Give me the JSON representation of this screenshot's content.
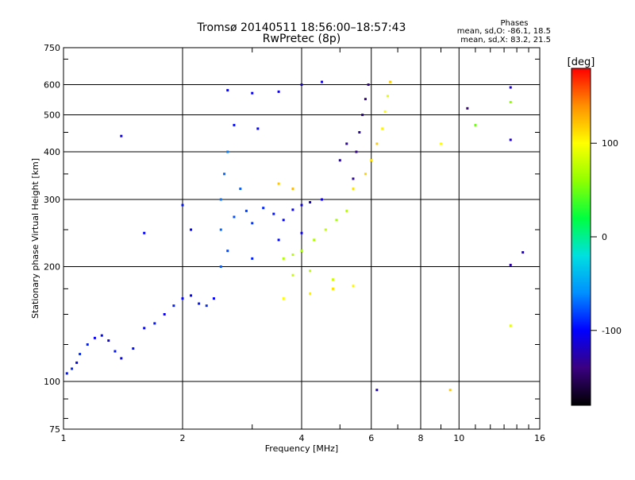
{
  "chart_data": {
    "type": "scatter",
    "title": "Tromsø 20140511 18:56:00–18:57:43",
    "subtitle": "RwPretec (8p)",
    "xlabel": "Frequency [MHz]",
    "ylabel": "Stationary phase Virtual Height [km]",
    "x_scale": "log",
    "y_scale": "log",
    "xlim": [
      1,
      16
    ],
    "ylim": [
      75,
      750
    ],
    "x_ticks": [
      1,
      2,
      4,
      6,
      8,
      10,
      16
    ],
    "x_tick_labels": [
      "1",
      "2",
      "4",
      "6",
      "8",
      "10",
      "16"
    ],
    "y_ticks": [
      75,
      100,
      200,
      300,
      400,
      500,
      600,
      750
    ],
    "y_tick_labels": [
      "75",
      "100",
      "200",
      "300",
      "400",
      "500",
      "600",
      "750"
    ],
    "grid": true,
    "stats": {
      "heading": "Phases",
      "o_line": "mean, sd,O: -86.1, 18.5",
      "x_line": "mean, sd,X: 83.2, 21.5"
    },
    "colorbar": {
      "unit_label": "[deg]",
      "range": [
        -180,
        180
      ],
      "ticks": [
        100,
        0,
        -100
      ],
      "tick_labels": [
        "100",
        "0",
        "-100"
      ],
      "colors": [
        "#000000",
        "#3a0080",
        "#0000ff",
        "#0090ff",
        "#00e0e0",
        "#00ff40",
        "#90ff00",
        "#ffff00",
        "#ff9000",
        "#ff0000"
      ]
    },
    "series": [
      {
        "values": [
          {
            "x": 1.02,
            "y": 105,
            "phase": -95
          },
          {
            "x": 1.05,
            "y": 108,
            "phase": -90
          },
          {
            "x": 1.08,
            "y": 112,
            "phase": -100
          },
          {
            "x": 1.1,
            "y": 118,
            "phase": -88
          },
          {
            "x": 1.15,
            "y": 125,
            "phase": -92
          },
          {
            "x": 1.2,
            "y": 130,
            "phase": -105
          },
          {
            "x": 1.25,
            "y": 132,
            "phase": -98
          },
          {
            "x": 1.3,
            "y": 128,
            "phase": -110
          },
          {
            "x": 1.35,
            "y": 120,
            "phase": -95
          },
          {
            "x": 1.4,
            "y": 115,
            "phase": -102
          },
          {
            "x": 1.5,
            "y": 122,
            "phase": -97
          },
          {
            "x": 1.6,
            "y": 138,
            "phase": -100
          },
          {
            "x": 1.7,
            "y": 142,
            "phase": -95
          },
          {
            "x": 1.8,
            "y": 150,
            "phase": -108
          },
          {
            "x": 1.9,
            "y": 158,
            "phase": -92
          },
          {
            "x": 2.0,
            "y": 165,
            "phase": -99
          },
          {
            "x": 2.1,
            "y": 168,
            "phase": -103
          },
          {
            "x": 2.2,
            "y": 160,
            "phase": -95
          },
          {
            "x": 2.3,
            "y": 158,
            "phase": -88
          },
          {
            "x": 2.4,
            "y": 165,
            "phase": -101
          }
        ]
      },
      {
        "values": [
          {
            "x": 2.5,
            "y": 200,
            "phase": -75
          },
          {
            "x": 2.5,
            "y": 250,
            "phase": -70
          },
          {
            "x": 2.5,
            "y": 300,
            "phase": -68
          },
          {
            "x": 2.55,
            "y": 350,
            "phase": -72
          },
          {
            "x": 2.6,
            "y": 400,
            "phase": -65
          },
          {
            "x": 2.6,
            "y": 220,
            "phase": -80
          },
          {
            "x": 2.7,
            "y": 270,
            "phase": -78
          },
          {
            "x": 2.8,
            "y": 320,
            "phase": -74
          },
          {
            "x": 2.9,
            "y": 280,
            "phase": -82
          },
          {
            "x": 3.0,
            "y": 260,
            "phase": -85
          },
          {
            "x": 3.2,
            "y": 285,
            "phase": -90
          },
          {
            "x": 3.4,
            "y": 275,
            "phase": -95
          },
          {
            "x": 3.6,
            "y": 265,
            "phase": -100
          },
          {
            "x": 3.8,
            "y": 282,
            "phase": -105
          },
          {
            "x": 4.0,
            "y": 290,
            "phase": -110
          },
          {
            "x": 4.2,
            "y": 295,
            "phase": -115
          },
          {
            "x": 4.5,
            "y": 300,
            "phase": -112
          },
          {
            "x": 3.5,
            "y": 235,
            "phase": -98
          },
          {
            "x": 4.0,
            "y": 245,
            "phase": -108
          },
          {
            "x": 3.0,
            "y": 210,
            "phase": -92
          }
        ]
      },
      {
        "values": [
          {
            "x": 2.6,
            "y": 580,
            "phase": -100
          },
          {
            "x": 3.0,
            "y": 570,
            "phase": -105
          },
          {
            "x": 3.5,
            "y": 575,
            "phase": -110
          },
          {
            "x": 4.0,
            "y": 600,
            "phase": -115
          },
          {
            "x": 4.5,
            "y": 610,
            "phase": -112
          },
          {
            "x": 2.7,
            "y": 470,
            "phase": -98
          },
          {
            "x": 3.1,
            "y": 460,
            "phase": -102
          }
        ]
      },
      {
        "values": [
          {
            "x": 5.4,
            "y": 340,
            "phase": -130
          },
          {
            "x": 5.5,
            "y": 400,
            "phase": -135
          },
          {
            "x": 5.6,
            "y": 450,
            "phase": -128
          },
          {
            "x": 5.7,
            "y": 500,
            "phase": -132
          },
          {
            "x": 5.8,
            "y": 550,
            "phase": -138
          },
          {
            "x": 5.9,
            "y": 600,
            "phase": -134
          },
          {
            "x": 5.0,
            "y": 380,
            "phase": -126
          },
          {
            "x": 5.2,
            "y": 420,
            "phase": -129
          }
        ]
      },
      {
        "values": [
          {
            "x": 3.6,
            "y": 210,
            "phase": 72
          },
          {
            "x": 3.8,
            "y": 215,
            "phase": 75
          },
          {
            "x": 4.0,
            "y": 220,
            "phase": 68
          },
          {
            "x": 4.3,
            "y": 235,
            "phase": 70
          },
          {
            "x": 4.6,
            "y": 250,
            "phase": 78
          },
          {
            "x": 4.9,
            "y": 265,
            "phase": 66
          },
          {
            "x": 5.2,
            "y": 280,
            "phase": 74
          },
          {
            "x": 3.8,
            "y": 190,
            "phase": 80
          },
          {
            "x": 4.2,
            "y": 195,
            "phase": 77
          },
          {
            "x": 4.8,
            "y": 185,
            "phase": 82
          }
        ]
      },
      {
        "values": [
          {
            "x": 3.6,
            "y": 165,
            "phase": 100
          },
          {
            "x": 4.2,
            "y": 170,
            "phase": 105
          },
          {
            "x": 4.8,
            "y": 175,
            "phase": 110
          },
          {
            "x": 5.4,
            "y": 178,
            "phase": 102
          },
          {
            "x": 3.5,
            "y": 330,
            "phase": 120
          },
          {
            "x": 3.8,
            "y": 320,
            "phase": 125
          }
        ]
      },
      {
        "values": [
          {
            "x": 5.4,
            "y": 320,
            "phase": 110
          },
          {
            "x": 5.8,
            "y": 350,
            "phase": 115
          },
          {
            "x": 6.0,
            "y": 380,
            "phase": 112
          },
          {
            "x": 6.2,
            "y": 420,
            "phase": 118
          },
          {
            "x": 6.4,
            "y": 460,
            "phase": 105
          },
          {
            "x": 6.5,
            "y": 510,
            "phase": 100
          },
          {
            "x": 6.6,
            "y": 560,
            "phase": 90
          },
          {
            "x": 6.7,
            "y": 610,
            "phase": 120
          }
        ]
      },
      {
        "values": [
          {
            "x": 1.4,
            "y": 440,
            "phase": -110
          },
          {
            "x": 1.6,
            "y": 245,
            "phase": -100
          },
          {
            "x": 2.0,
            "y": 290,
            "phase": -95
          },
          {
            "x": 2.1,
            "y": 250,
            "phase": -100
          },
          {
            "x": 9.0,
            "y": 420,
            "phase": 100
          },
          {
            "x": 9.5,
            "y": 95,
            "phase": 120
          },
          {
            "x": 10.5,
            "y": 520,
            "phase": -140
          },
          {
            "x": 11.0,
            "y": 470,
            "phase": 50
          },
          {
            "x": 13.5,
            "y": 590,
            "phase": -120
          },
          {
            "x": 13.5,
            "y": 540,
            "phase": 60
          },
          {
            "x": 13.5,
            "y": 430,
            "phase": -120
          },
          {
            "x": 13.5,
            "y": 202,
            "phase": -130
          },
          {
            "x": 13.5,
            "y": 140,
            "phase": 90
          },
          {
            "x": 14.5,
            "y": 218,
            "phase": -120
          },
          {
            "x": 6.2,
            "y": 95,
            "phase": -120
          }
        ]
      }
    ]
  }
}
